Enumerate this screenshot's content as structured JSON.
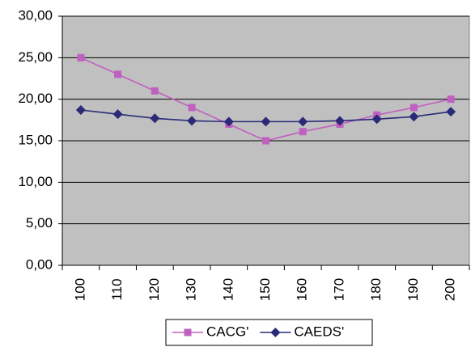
{
  "chart_data": {
    "type": "line",
    "categories": [
      "100",
      "110",
      "120",
      "130",
      "140",
      "150",
      "160",
      "170",
      "180",
      "190",
      "200"
    ],
    "series": [
      {
        "name": "CACG'",
        "color": "#c060c0",
        "marker": "square",
        "values": [
          25,
          23,
          21,
          19,
          17,
          15,
          16.1,
          17,
          18.1,
          19,
          20
        ]
      },
      {
        "name": "CAEDS'",
        "color": "#2a2a78",
        "marker": "diamond",
        "values": [
          18.7,
          18.2,
          17.7,
          17.4,
          17.3,
          17.3,
          17.3,
          17.4,
          17.6,
          17.9,
          18.5
        ]
      }
    ],
    "ylim": [
      0,
      30
    ],
    "yticks": [
      {
        "value": 0,
        "label": "0,00"
      },
      {
        "value": 5,
        "label": "5,00"
      },
      {
        "value": 10,
        "label": "10,00"
      },
      {
        "value": 15,
        "label": "15,00"
      },
      {
        "value": 20,
        "label": "20,00"
      },
      {
        "value": 25,
        "label": "25,00"
      },
      {
        "value": 30,
        "label": "30,00"
      }
    ],
    "grid": true,
    "background": "#c0c0c0",
    "legend": "bottom"
  }
}
